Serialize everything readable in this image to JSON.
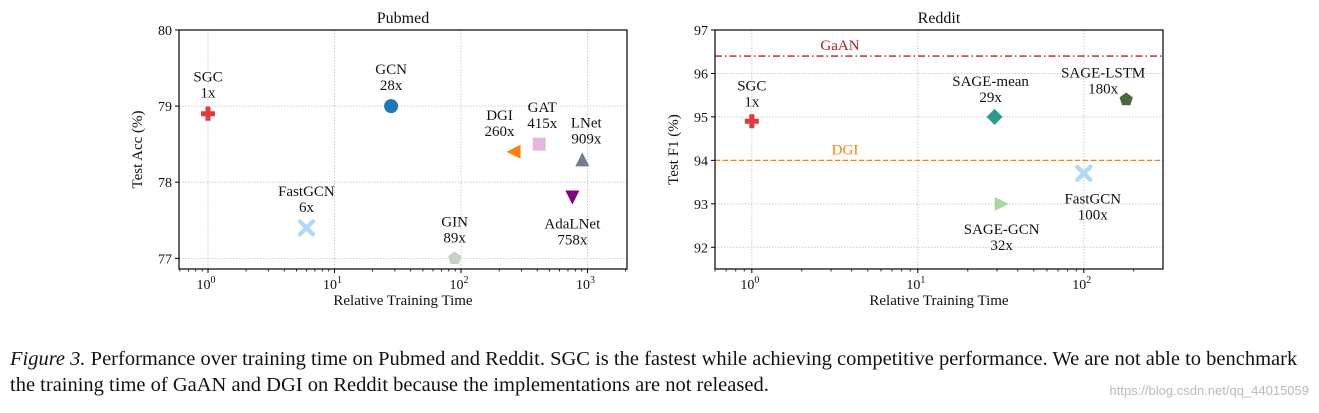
{
  "chart_data": [
    {
      "type": "scatter",
      "title": "Pubmed",
      "xlabel": "Relative Training Time",
      "ylabel": "Test Acc (%)",
      "xscale": "log",
      "xlim": [
        0.59,
        2050
      ],
      "ylim": [
        76.86,
        80
      ],
      "xticks": [
        {
          "value": 1,
          "label": "10",
          "exp": "0"
        },
        {
          "value": 10,
          "label": "10",
          "exp": "1"
        },
        {
          "value": 100,
          "label": "10",
          "exp": "2"
        },
        {
          "value": 1000,
          "label": "10",
          "exp": "3"
        }
      ],
      "yticks": [
        77,
        78,
        79,
        80
      ],
      "grid": true,
      "points": [
        {
          "name": "SGC",
          "speedup": "1x",
          "x": 1,
          "y": 78.9,
          "marker": "plus",
          "color": "#e03a3a"
        },
        {
          "name": "GCN",
          "speedup": "28x",
          "x": 28,
          "y": 79.0,
          "marker": "circle",
          "color": "#1f77b4"
        },
        {
          "name": "DGI",
          "speedup": "260x",
          "x": 260,
          "y": 78.4,
          "marker": "triangle-left",
          "color": "#ff7f0e"
        },
        {
          "name": "GAT",
          "speedup": "415x",
          "x": 415,
          "y": 78.5,
          "marker": "square",
          "color": "#e3b6e3"
        },
        {
          "name": "LNet",
          "speedup": "909x",
          "x": 909,
          "y": 78.3,
          "marker": "triangle-up",
          "color": "#6f7f8f"
        },
        {
          "name": "AdaLNet",
          "speedup": "758x",
          "x": 758,
          "y": 77.8,
          "marker": "triangle-down",
          "color": "#800080"
        },
        {
          "name": "FastGCN",
          "speedup": "6x",
          "x": 6,
          "y": 77.4,
          "marker": "x",
          "color": "#b0d8f8"
        },
        {
          "name": "GIN",
          "speedup": "89x",
          "x": 89,
          "y": 77.0,
          "marker": "pentagon",
          "color": "#c5d3c5"
        }
      ],
      "hlines": []
    },
    {
      "type": "scatter",
      "title": "Reddit",
      "xlabel": "Relative Training Time",
      "ylabel": "Test F1 (%)",
      "xscale": "log",
      "xlim": [
        0.6,
        300
      ],
      "ylim": [
        91.5,
        97
      ],
      "xticks": [
        {
          "value": 1,
          "label": "10",
          "exp": "0"
        },
        {
          "value": 10,
          "label": "10",
          "exp": "1"
        },
        {
          "value": 100,
          "label": "10",
          "exp": "2"
        }
      ],
      "yticks": [
        92,
        93,
        94,
        95,
        96,
        97
      ],
      "grid": true,
      "points": [
        {
          "name": "SGC",
          "speedup": "1x",
          "x": 1,
          "y": 94.9,
          "marker": "plus",
          "color": "#e03a3a"
        },
        {
          "name": "SAGE-mean",
          "speedup": "29x",
          "x": 29,
          "y": 95.0,
          "marker": "diamond",
          "color": "#2a9d8f"
        },
        {
          "name": "SAGE-LSTM",
          "speedup": "180x",
          "x": 180,
          "y": 95.4,
          "marker": "pentagon",
          "color": "#4a6741"
        },
        {
          "name": "SAGE-GCN",
          "speedup": "32x",
          "x": 32,
          "y": 93.0,
          "marker": "triangle-right",
          "color": "#a8d8a0"
        },
        {
          "name": "FastGCN",
          "speedup": "100x",
          "x": 100,
          "y": 93.7,
          "marker": "x",
          "color": "#b0d8f8"
        }
      ],
      "hlines": [
        {
          "name": "GaAN",
          "y": 96.4,
          "style": "dashdot",
          "color": "#b22222"
        },
        {
          "name": "DGI",
          "y": 94.0,
          "style": "dashed",
          "color": "#ff7f0e"
        }
      ]
    }
  ],
  "caption": {
    "label": "Figure 3.",
    "text": "Performance over training time on Pubmed and Reddit. SGC is the fastest while achieving competitive performance. We are not able to benchmark the training time of GaAN and DGI on Reddit because the implementations are not released."
  },
  "watermark": "https://blog.csdn.net/qq_44015059"
}
